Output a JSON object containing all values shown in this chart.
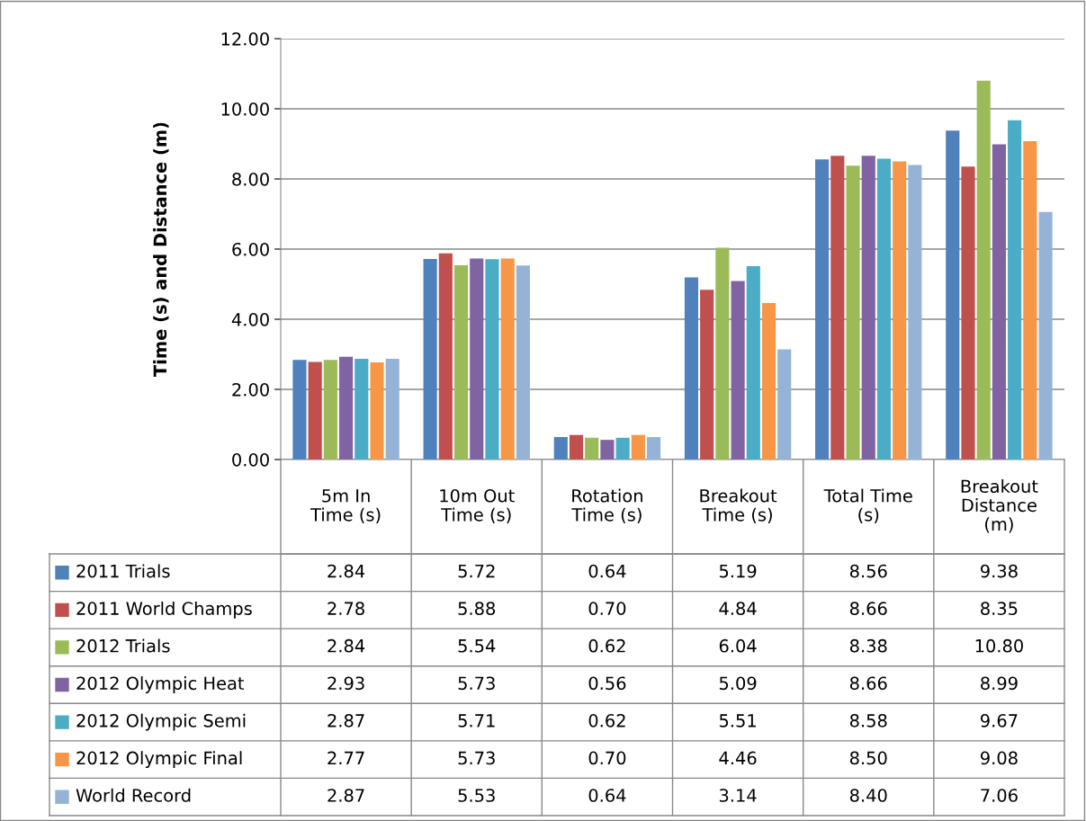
{
  "chart_data": {
    "type": "bar",
    "ylabel": "Time (s) and Distance (m)",
    "categories": [
      "5m In\nTime (s)",
      "10m Out\nTime (s)",
      "Rotation\nTime (s)",
      "Breakout\nTime (s)",
      "Total Time\n(s)",
      "Breakout\nDistance\n(m)"
    ],
    "series": [
      {
        "name": "2011 Trials",
        "color": "#4f81bd",
        "values": [
          2.84,
          5.72,
          0.64,
          5.19,
          8.56,
          9.38
        ],
        "value_labels": [
          "2.84",
          "5.72",
          "0.64",
          "5.19",
          "8.56",
          "9.38"
        ]
      },
      {
        "name": "2011 World Champs",
        "color": "#c0504d",
        "values": [
          2.78,
          5.88,
          0.7,
          4.84,
          8.66,
          8.35
        ],
        "value_labels": [
          "2.78",
          "5.88",
          "0.70",
          "4.84",
          "8.66",
          "8.35"
        ]
      },
      {
        "name": "2012 Trials",
        "color": "#9bbb59",
        "values": [
          2.84,
          5.54,
          0.62,
          6.04,
          8.38,
          10.8
        ],
        "value_labels": [
          "2.84",
          "5.54",
          "0.62",
          "6.04",
          "8.38",
          "10.80"
        ]
      },
      {
        "name": "2012 Olympic Heat",
        "color": "#8064a2",
        "values": [
          2.93,
          5.73,
          0.56,
          5.09,
          8.66,
          8.99
        ],
        "value_labels": [
          "2.93",
          "5.73",
          "0.56",
          "5.09",
          "8.66",
          "8.99"
        ]
      },
      {
        "name": "2012 Olympic Semi",
        "color": "#4bacc6",
        "values": [
          2.87,
          5.71,
          0.62,
          5.51,
          8.58,
          9.67
        ],
        "value_labels": [
          "2.87",
          "5.71",
          "0.62",
          "5.51",
          "8.58",
          "9.67"
        ]
      },
      {
        "name": "2012 Olympic Final",
        "color": "#f79646",
        "values": [
          2.77,
          5.73,
          0.7,
          4.46,
          8.5,
          9.08
        ],
        "value_labels": [
          "2.77",
          "5.73",
          "0.70",
          "4.46",
          "8.50",
          "9.08"
        ]
      },
      {
        "name": "World Record",
        "color": "#95b3d7",
        "values": [
          2.87,
          5.53,
          0.64,
          3.14,
          8.4,
          7.06
        ],
        "value_labels": [
          "2.87",
          "5.53",
          "0.64",
          "3.14",
          "8.40",
          "7.06"
        ]
      }
    ],
    "ylim": [
      0,
      12
    ],
    "yticks": [
      {
        "value": 0,
        "label": "0.00"
      },
      {
        "value": 2,
        "label": "2.00"
      },
      {
        "value": 4,
        "label": "4.00"
      },
      {
        "value": 6,
        "label": "6.00"
      },
      {
        "value": 8,
        "label": "8.00"
      },
      {
        "value": 10,
        "label": "10.00"
      },
      {
        "value": 12,
        "label": "12.00"
      }
    ],
    "grid": "y",
    "legend": "bottom"
  }
}
